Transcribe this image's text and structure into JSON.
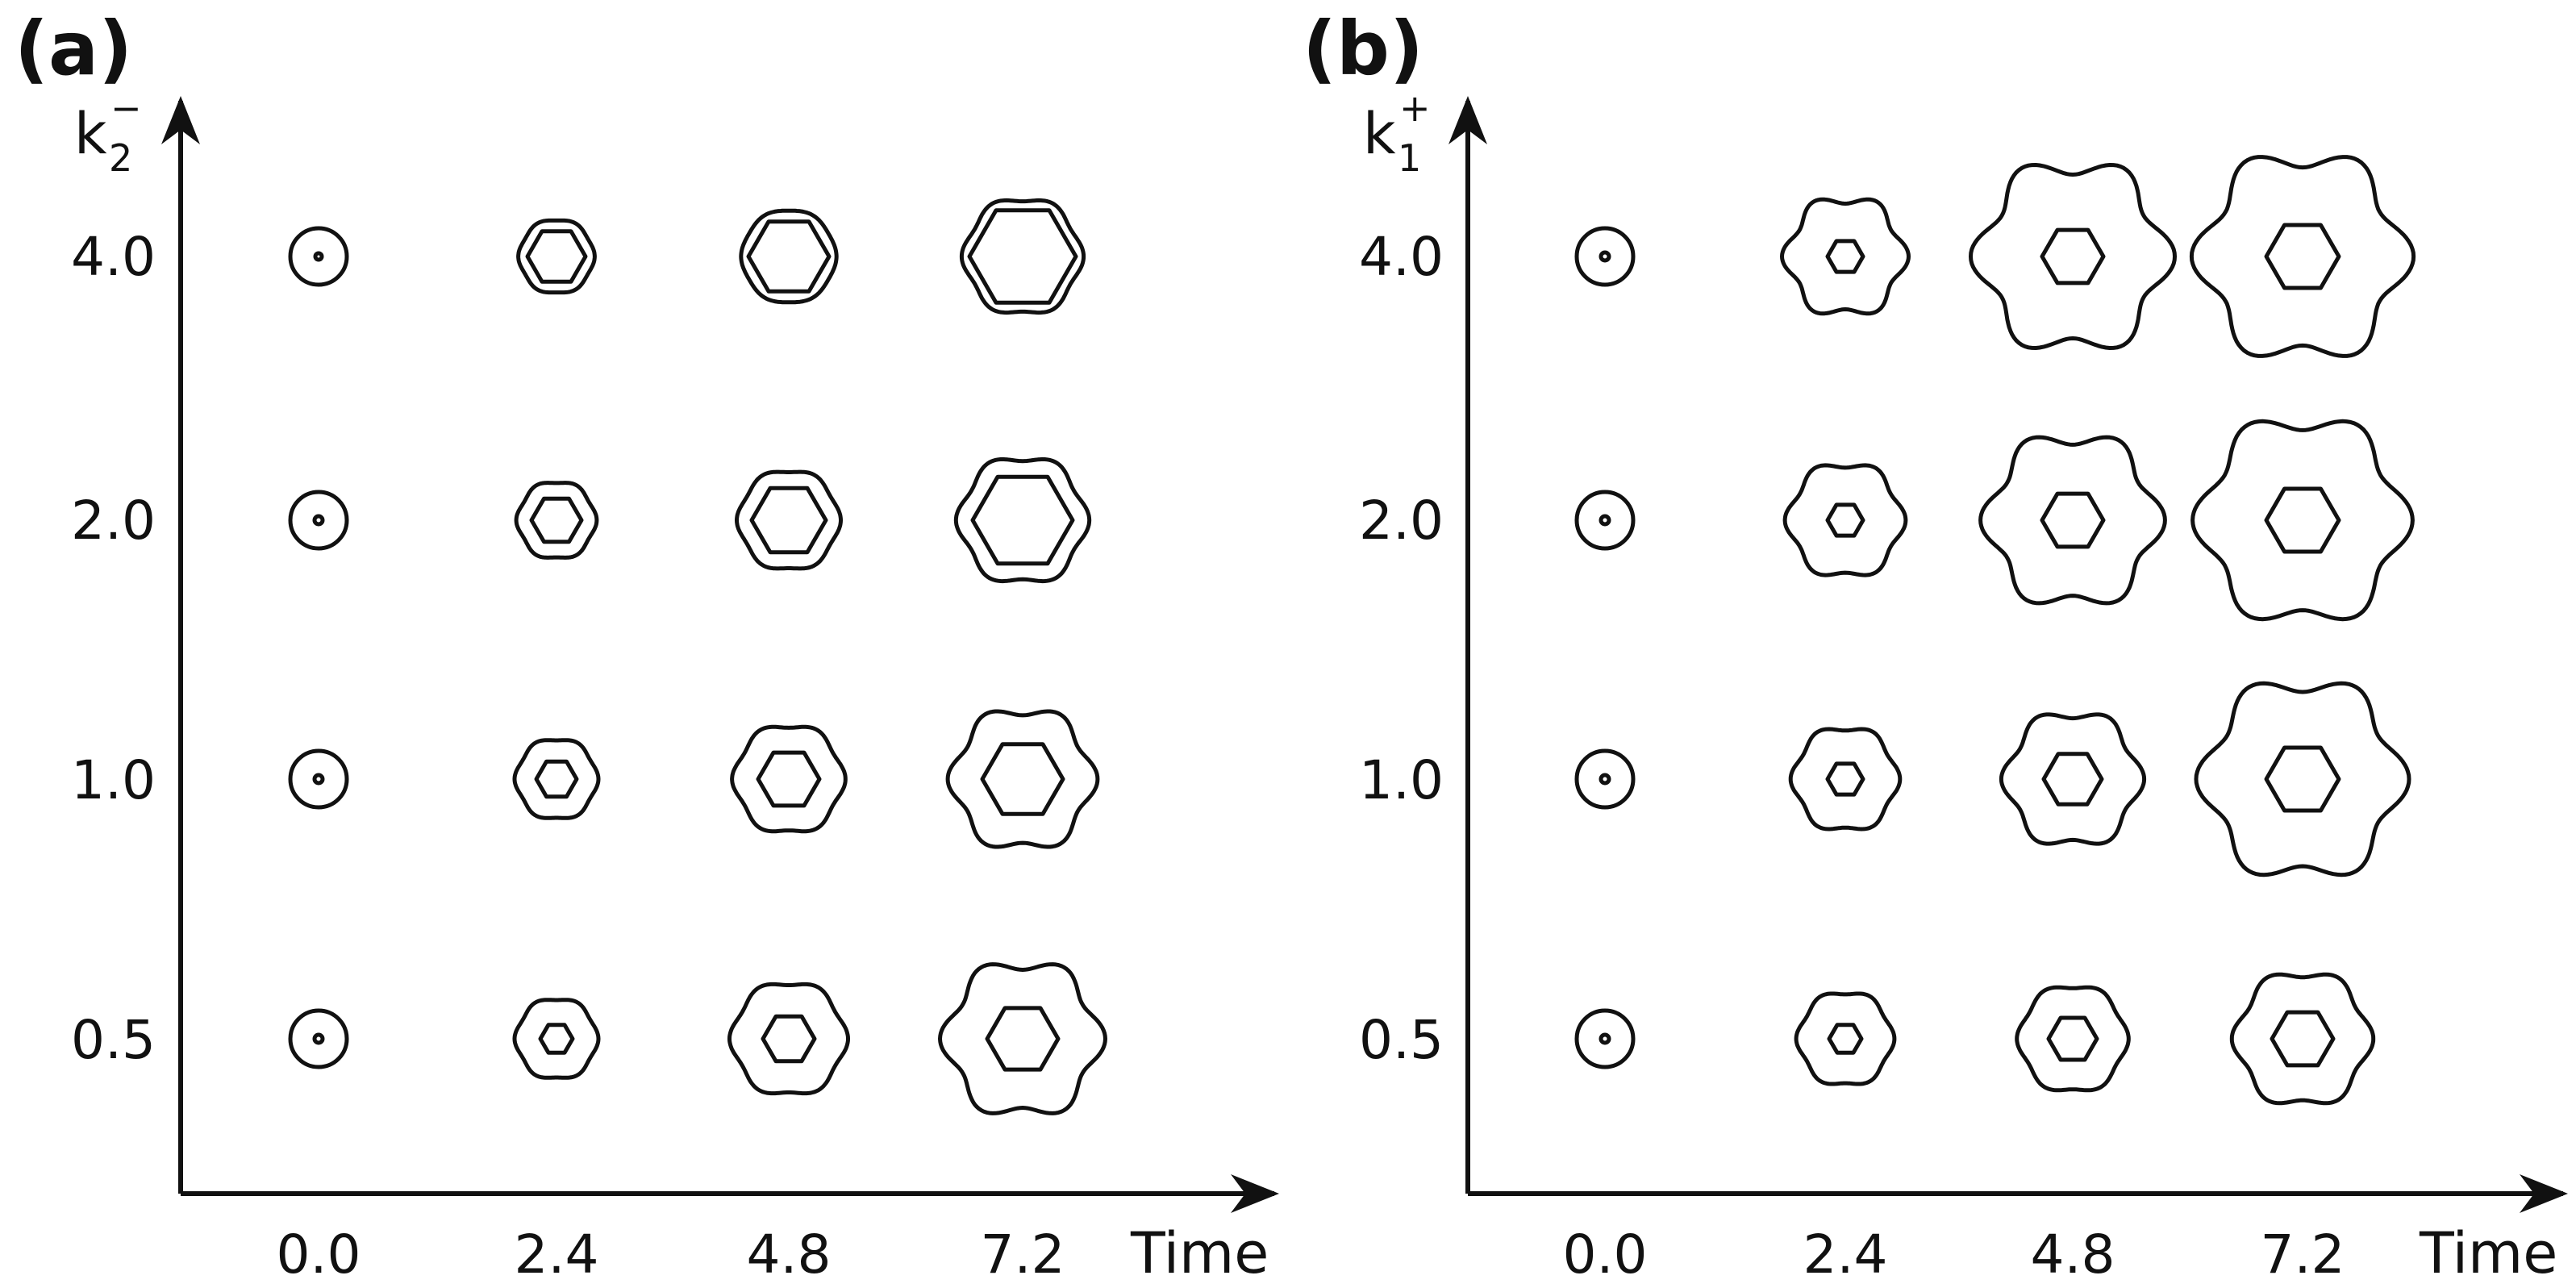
{
  "colors": {
    "ink": "#111111",
    "background": "#ffffff"
  },
  "panels": [
    {
      "label": "(a)",
      "y_axis": {
        "symbol": "k",
        "subscript": "2",
        "superscript": "−"
      },
      "x_axis": {
        "label": "Time"
      },
      "time_values": [
        "0.0",
        "2.4",
        "4.8",
        "7.2"
      ],
      "param_values": [
        "4.0",
        "2.0",
        "1.0",
        "0.5"
      ]
    },
    {
      "label": "(b)",
      "y_axis": {
        "symbol": "k",
        "subscript": "1",
        "superscript": "+"
      },
      "x_axis": {
        "label": "Time"
      },
      "time_values": [
        "0.0",
        "2.4",
        "4.8",
        "7.2"
      ],
      "param_values": [
        "4.0",
        "2.0",
        "1.0",
        "0.5"
      ]
    }
  ]
}
